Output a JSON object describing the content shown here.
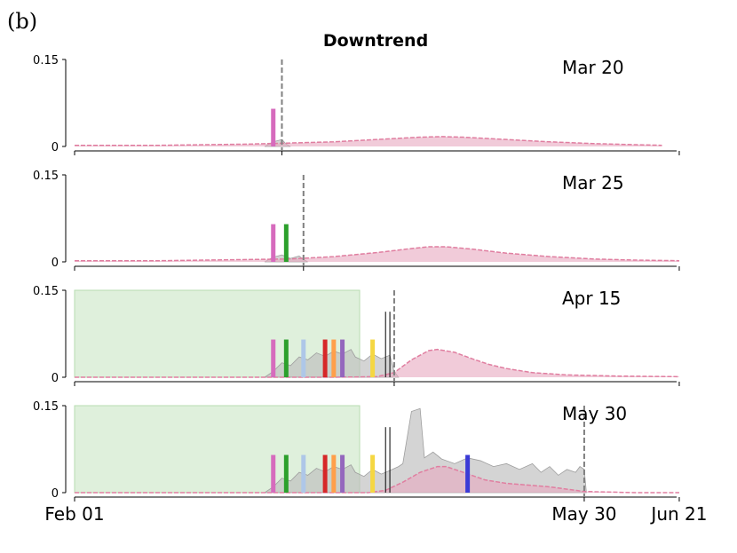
{
  "panel_label": "(b)",
  "chart_data": {
    "type": "area",
    "title": "Downtrend",
    "xlabel": "",
    "ylabel": "",
    "x_start": "Feb 01",
    "x_end": "Jun 21",
    "x_tick_labels": [
      "Feb 01",
      "May 30",
      "Jun 21"
    ],
    "x_tick_days": [
      0,
      118,
      140
    ],
    "ylim": [
      0,
      0.15
    ],
    "y_tick_labels": [
      "0",
      "0.15"
    ],
    "colors": {
      "forecast_fill": "#e8a9c0",
      "forecast_line": "#e07ea0",
      "observed_fill": "#bdbdbd",
      "window_fill": "#dff0dc",
      "window_edge": "#b7dcb0",
      "cutoff_line": "#808080"
    },
    "panels": [
      {
        "label": "Mar 20",
        "cutoff_day": 48,
        "green_window": null,
        "black_lines": [],
        "event_markers": [
          {
            "day": 46,
            "color": "#d66bbd"
          }
        ],
        "observed": [
          [
            44,
            0
          ],
          [
            46,
            0.008
          ],
          [
            48,
            0.012
          ],
          [
            49,
            0.004
          ],
          [
            50,
            0
          ]
        ],
        "forecast": [
          [
            0,
            0.002
          ],
          [
            20,
            0.002
          ],
          [
            40,
            0.004
          ],
          [
            50,
            0.006
          ],
          [
            60,
            0.008
          ],
          [
            70,
            0.012
          ],
          [
            80,
            0.016
          ],
          [
            85,
            0.017
          ],
          [
            90,
            0.016
          ],
          [
            100,
            0.012
          ],
          [
            110,
            0.008
          ],
          [
            120,
            0.005
          ],
          [
            130,
            0.003
          ],
          [
            136,
            0.002
          ]
        ]
      },
      {
        "label": "Mar 25",
        "cutoff_day": 53,
        "green_window": null,
        "black_lines": [],
        "event_markers": [
          {
            "day": 46,
            "color": "#d66bbd"
          },
          {
            "day": 49,
            "color": "#2ca02c"
          }
        ],
        "observed": [
          [
            44,
            0
          ],
          [
            46,
            0.008
          ],
          [
            48,
            0.012
          ],
          [
            50,
            0.006
          ],
          [
            52,
            0.01
          ],
          [
            53,
            0.004
          ],
          [
            54,
            0
          ]
        ],
        "forecast": [
          [
            0,
            0.002
          ],
          [
            20,
            0.002
          ],
          [
            40,
            0.004
          ],
          [
            50,
            0.005
          ],
          [
            60,
            0.009
          ],
          [
            70,
            0.016
          ],
          [
            78,
            0.023
          ],
          [
            82,
            0.026
          ],
          [
            86,
            0.026
          ],
          [
            92,
            0.022
          ],
          [
            100,
            0.015
          ],
          [
            110,
            0.009
          ],
          [
            120,
            0.005
          ],
          [
            130,
            0.003
          ],
          [
            140,
            0.002
          ]
        ]
      },
      {
        "label": "Apr 15",
        "cutoff_day": 74,
        "green_window": [
          0,
          66
        ],
        "black_lines": [
          72,
          73
        ],
        "event_markers": [
          {
            "day": 46,
            "color": "#d66bbd"
          },
          {
            "day": 49,
            "color": "#2ca02c"
          },
          {
            "day": 53,
            "color": "#aec7e8"
          },
          {
            "day": 58,
            "color": "#d62728"
          },
          {
            "day": 60,
            "color": "#ff9f4a"
          },
          {
            "day": 62,
            "color": "#9467bd"
          },
          {
            "day": 69,
            "color": "#f5d742"
          }
        ],
        "observed": [
          [
            44,
            0
          ],
          [
            46,
            0.01
          ],
          [
            48,
            0.025
          ],
          [
            50,
            0.02
          ],
          [
            52,
            0.035
          ],
          [
            54,
            0.03
          ],
          [
            56,
            0.042
          ],
          [
            58,
            0.036
          ],
          [
            60,
            0.045
          ],
          [
            62,
            0.04
          ],
          [
            64,
            0.048
          ],
          [
            65,
            0.035
          ],
          [
            67,
            0.028
          ],
          [
            69,
            0.04
          ],
          [
            71,
            0.032
          ],
          [
            73,
            0.038
          ],
          [
            74,
            0.01
          ],
          [
            75,
            0
          ]
        ],
        "forecast": [
          [
            0,
            0
          ],
          [
            60,
            0
          ],
          [
            70,
            0.001
          ],
          [
            74,
            0.008
          ],
          [
            78,
            0.03
          ],
          [
            82,
            0.046
          ],
          [
            84,
            0.048
          ],
          [
            88,
            0.043
          ],
          [
            92,
            0.032
          ],
          [
            96,
            0.022
          ],
          [
            100,
            0.015
          ],
          [
            106,
            0.008
          ],
          [
            114,
            0.004
          ],
          [
            126,
            0.002
          ],
          [
            140,
            0.001
          ]
        ]
      },
      {
        "label": "May 30",
        "cutoff_day": 118,
        "green_window": [
          0,
          66
        ],
        "black_lines": [
          72,
          73
        ],
        "event_markers": [
          {
            "day": 46,
            "color": "#d66bbd"
          },
          {
            "day": 49,
            "color": "#2ca02c"
          },
          {
            "day": 53,
            "color": "#aec7e8"
          },
          {
            "day": 58,
            "color": "#d62728"
          },
          {
            "day": 60,
            "color": "#ff9f4a"
          },
          {
            "day": 62,
            "color": "#9467bd"
          },
          {
            "day": 69,
            "color": "#f5d742"
          },
          {
            "day": 91,
            "color": "#3b3bd6"
          }
        ],
        "observed": [
          [
            44,
            0
          ],
          [
            46,
            0.01
          ],
          [
            48,
            0.025
          ],
          [
            50,
            0.02
          ],
          [
            52,
            0.035
          ],
          [
            54,
            0.03
          ],
          [
            56,
            0.042
          ],
          [
            58,
            0.036
          ],
          [
            60,
            0.045
          ],
          [
            62,
            0.04
          ],
          [
            64,
            0.048
          ],
          [
            65,
            0.035
          ],
          [
            67,
            0.028
          ],
          [
            69,
            0.04
          ],
          [
            71,
            0.032
          ],
          [
            73,
            0.038
          ],
          [
            75,
            0.045
          ],
          [
            76,
            0.05
          ],
          [
            78,
            0.14
          ],
          [
            80,
            0.145
          ],
          [
            81,
            0.06
          ],
          [
            83,
            0.07
          ],
          [
            85,
            0.058
          ],
          [
            88,
            0.05
          ],
          [
            91,
            0.06
          ],
          [
            94,
            0.055
          ],
          [
            97,
            0.045
          ],
          [
            100,
            0.05
          ],
          [
            103,
            0.04
          ],
          [
            106,
            0.05
          ],
          [
            108,
            0.035
          ],
          [
            110,
            0.045
          ],
          [
            112,
            0.03
          ],
          [
            114,
            0.04
          ],
          [
            116,
            0.035
          ],
          [
            117,
            0.045
          ],
          [
            118,
            0.04
          ],
          [
            118.5,
            0
          ]
        ],
        "forecast": [
          [
            0,
            0
          ],
          [
            68,
            0
          ],
          [
            72,
            0.004
          ],
          [
            76,
            0.018
          ],
          [
            80,
            0.035
          ],
          [
            84,
            0.045
          ],
          [
            86,
            0.045
          ],
          [
            90,
            0.035
          ],
          [
            95,
            0.022
          ],
          [
            100,
            0.016
          ],
          [
            105,
            0.013
          ],
          [
            110,
            0.01
          ],
          [
            114,
            0.006
          ],
          [
            118,
            0.002
          ],
          [
            130,
            0
          ],
          [
            140,
            0
          ]
        ]
      }
    ]
  }
}
